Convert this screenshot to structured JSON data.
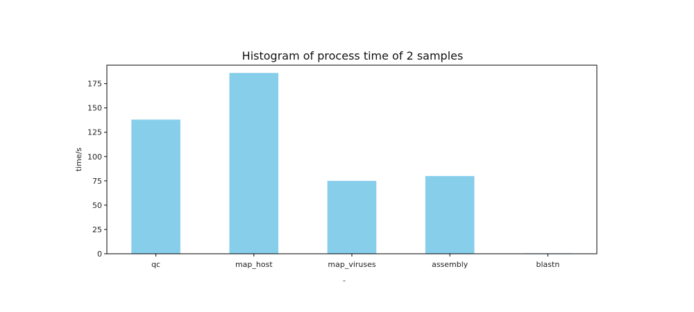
{
  "chart_data": {
    "type": "bar",
    "title": "Histogram of process time of 2 samples",
    "xlabel": "-",
    "ylabel": "time/s",
    "categories": [
      "qc",
      "map_host",
      "map_viruses",
      "assembly",
      "blastn"
    ],
    "values": [
      138,
      186,
      75,
      80,
      0.5
    ],
    "ylim": [
      0,
      194
    ],
    "yticks": [
      0,
      25,
      50,
      75,
      100,
      125,
      150,
      175
    ],
    "grid": false,
    "bar_color": "#87ceeb"
  }
}
